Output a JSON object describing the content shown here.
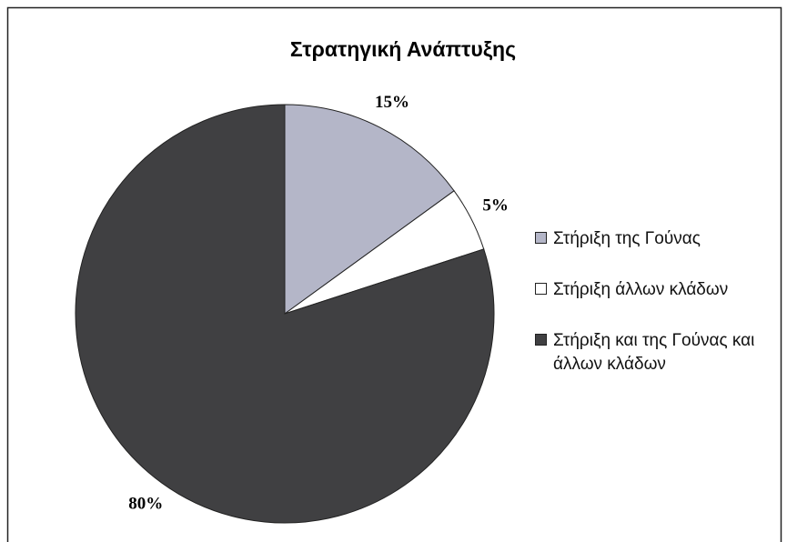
{
  "chart_data": {
    "type": "pie",
    "title": "Στρατηγική Ανάπτυξης",
    "categories": [
      "Στήριξη της Γούνας",
      "Στήριξη άλλων κλάδων",
      "Στήριξη και της Γούνας και άλλων κλάδων"
    ],
    "values": [
      15,
      5,
      80
    ],
    "value_labels": [
      "15%",
      "5%",
      "80%"
    ],
    "colors": [
      "#b4b6c8",
      "#ffffff",
      "#404042"
    ],
    "legend": "right"
  }
}
